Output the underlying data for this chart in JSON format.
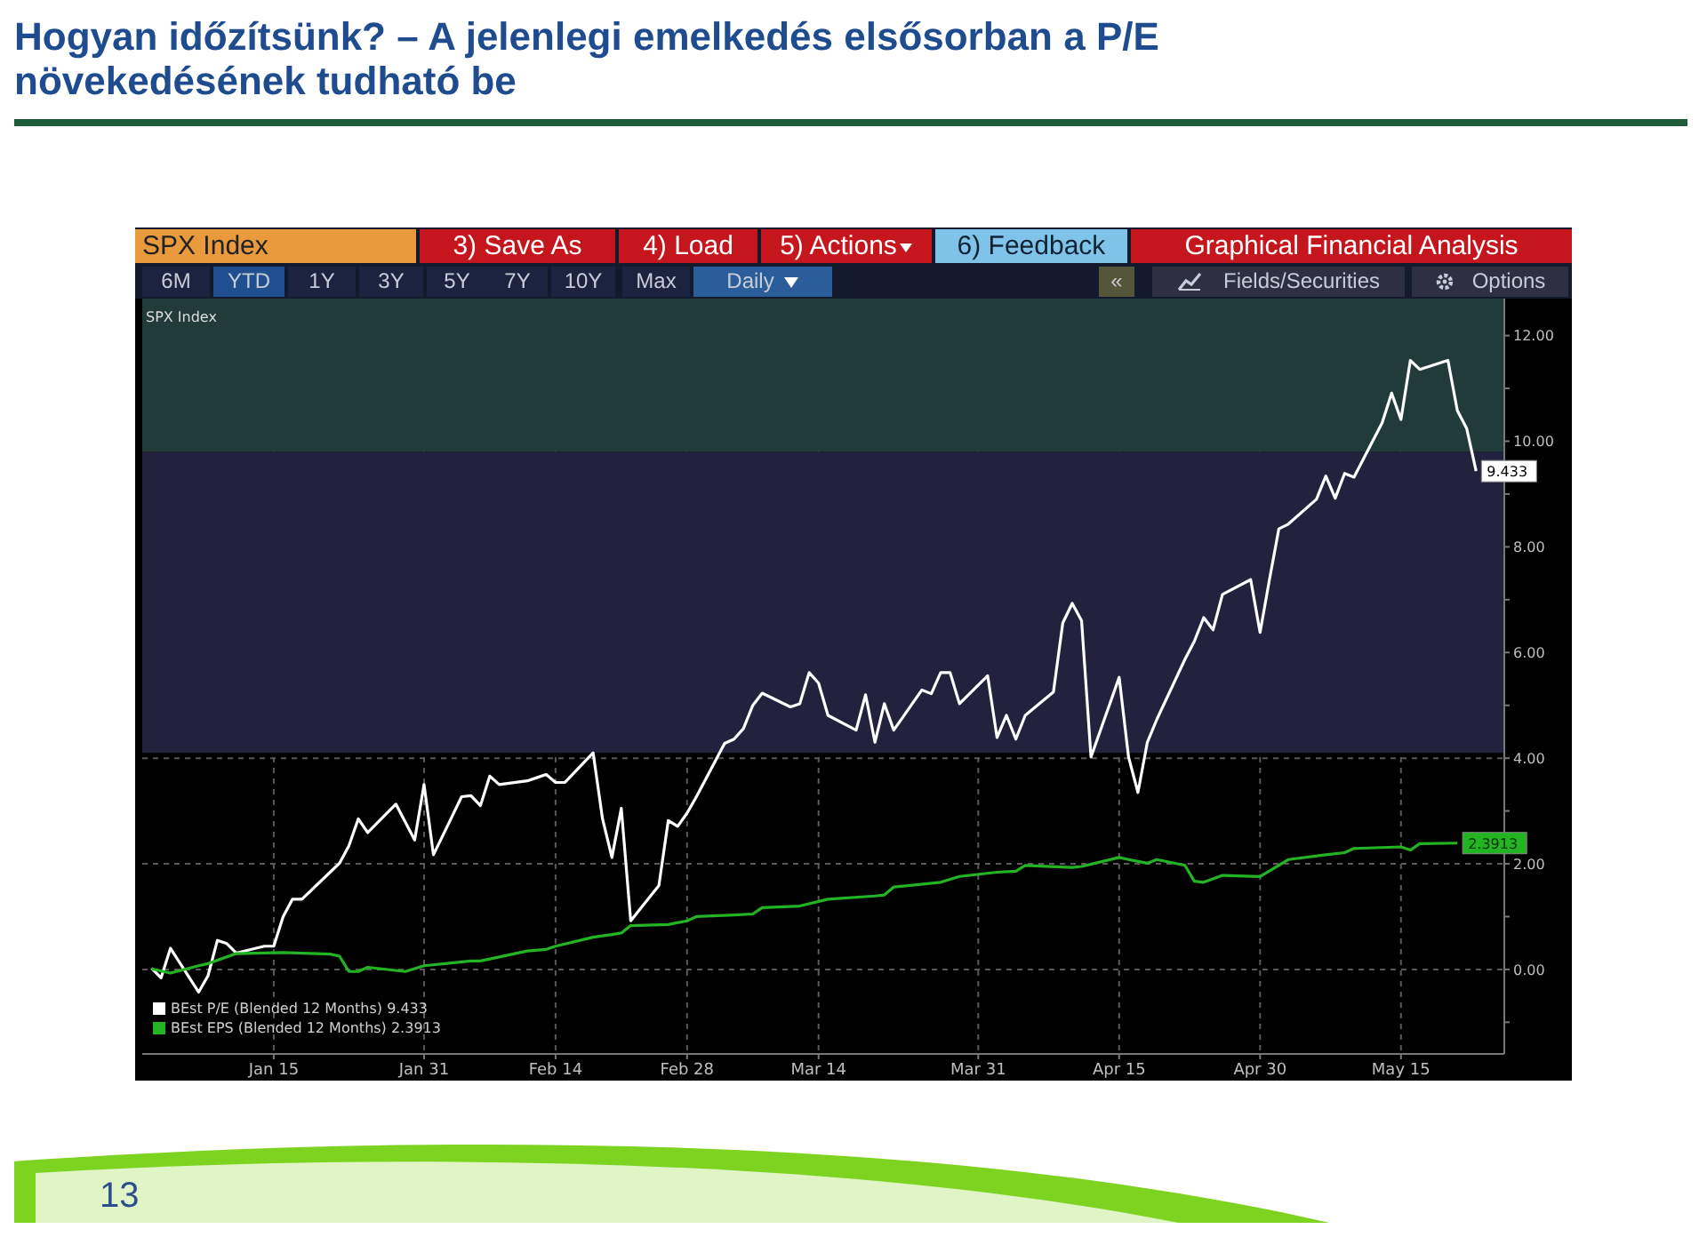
{
  "chart_data": {
    "type": "line",
    "title": "Hogyan időzítsünk? – A jelenlegi emelkedés elsősorban a P/E növekedésének tudható be",
    "subtitle": "SPX Index",
    "annotations": [
      "SPX Index",
      "3) Save As",
      "4) Load",
      "5) Actions",
      "6) Feedback",
      "Graphical Financial Analysis",
      "6M",
      "YTD",
      "1Y",
      "3Y",
      "5Y",
      "7Y",
      "10Y",
      "Max",
      "Daily",
      "«",
      "Fields/Securities",
      "Options",
      "13"
    ],
    "x": [
      "--01-02",
      "--01-03",
      "--01-04",
      "--01-07",
      "--01-08",
      "--01-09",
      "--01-10",
      "--01-11",
      "--01-14",
      "--01-15",
      "--01-16",
      "--01-17",
      "--01-18",
      "--01-21",
      "--01-22",
      "--01-23",
      "--01-24",
      "--01-25",
      "--01-28",
      "--01-29",
      "--01-30",
      "--01-31",
      "--02-01",
      "--02-04",
      "--02-05",
      "--02-06",
      "--02-07",
      "--02-08",
      "--02-11",
      "--02-12",
      "--02-13",
      "--02-14",
      "--02-15",
      "--02-18",
      "--02-19",
      "--02-20",
      "--02-21",
      "--02-22",
      "--02-25",
      "--02-26",
      "--02-27",
      "--02-28",
      "--03-01",
      "--03-04",
      "--03-05",
      "--03-06",
      "--03-07",
      "--03-08",
      "--03-11",
      "--03-12",
      "--03-13",
      "--03-14",
      "--03-15",
      "--03-18",
      "--03-19",
      "--03-20",
      "--03-21",
      "--03-22",
      "--03-25",
      "--03-26",
      "--03-27",
      "--03-28",
      "--03-29",
      "--04-01",
      "--04-02",
      "--04-03",
      "--04-04",
      "--04-05",
      "--04-08",
      "--04-09",
      "--04-10",
      "--04-11",
      "--04-12",
      "--04-15",
      "--04-16",
      "--04-17",
      "--04-18",
      "--04-19",
      "--04-22",
      "--04-23",
      "--04-24",
      "--04-25",
      "--04-26",
      "--04-29",
      "--04-30",
      "--05-01",
      "--05-02",
      "--05-03",
      "--05-06",
      "--05-07",
      "--05-08",
      "--05-09",
      "--05-10",
      "--05-13",
      "--05-14",
      "--05-15",
      "--05-16",
      "--05-17",
      "--05-20",
      "--05-21",
      "--05-22",
      "--05-23"
    ],
    "series": [
      {
        "name": "BEst P/E (Blended 12 Months) 9.433",
        "color": "#ffffff",
        "values": [
          0.02,
          -0.16,
          0.4,
          -0.43,
          -0.12,
          0.55,
          0.49,
          0.31,
          0.44,
          0.44,
          1.0,
          1.33,
          1.33,
          1.84,
          2.01,
          2.34,
          2.85,
          2.59,
          3.13,
          2.79,
          2.45,
          3.5,
          2.17,
          3.27,
          3.29,
          3.1,
          3.66,
          3.5,
          3.57,
          3.63,
          3.69,
          3.54,
          3.54,
          4.1,
          2.85,
          2.12,
          3.05,
          0.92,
          1.59,
          2.82,
          2.71,
          2.96,
          3.27,
          4.28,
          4.36,
          4.56,
          5.0,
          5.23,
          4.97,
          5.03,
          5.62,
          5.42,
          4.81,
          4.53,
          5.2,
          4.3,
          5.03,
          4.53,
          5.29,
          5.22,
          5.62,
          5.62,
          5.03,
          5.56,
          4.39,
          4.81,
          4.36,
          4.81,
          5.25,
          6.56,
          6.93,
          6.6,
          4.02,
          5.53,
          4.02,
          3.35,
          4.3,
          4.73,
          5.87,
          6.21,
          6.66,
          6.43,
          7.1,
          7.38,
          6.38,
          7.38,
          8.34,
          8.43,
          8.9,
          9.34,
          8.92,
          9.39,
          9.32,
          10.35,
          10.91,
          10.41,
          11.53,
          11.36,
          11.53,
          10.58,
          10.24,
          9.433
        ],
        "value_labels": [
          null,
          null,
          null,
          null,
          null,
          null,
          null,
          null,
          null,
          null,
          null,
          null,
          null,
          null,
          null,
          null,
          null,
          null,
          null,
          null,
          null,
          null,
          null,
          null,
          null,
          null,
          null,
          null,
          null,
          null,
          null,
          null,
          null,
          null,
          null,
          null,
          null,
          null,
          null,
          null,
          null,
          null,
          null,
          null,
          null,
          null,
          null,
          null,
          null,
          null,
          null,
          null,
          null,
          null,
          null,
          null,
          null,
          null,
          null,
          null,
          null,
          null,
          null,
          null,
          null,
          null,
          null,
          null,
          null,
          null,
          null,
          null,
          null,
          null,
          null,
          null,
          null,
          null,
          null,
          null,
          null,
          null,
          null,
          null,
          null,
          null,
          null,
          null,
          null,
          null,
          null,
          null,
          null,
          null,
          null,
          null,
          null,
          null,
          null,
          null,
          null,
          "9.433"
        ]
      },
      {
        "name": "BEst EPS (Blended 12 Months) 2.3913",
        "color": "#22b422",
        "x": [
          "--01-02",
          "--01-04",
          "--01-07",
          "--01-08",
          "--01-11",
          "--01-16",
          "--01-21",
          "--01-22",
          "--01-23",
          "--01-24",
          "--01-25",
          "--01-29",
          "--01-31",
          "--02-05",
          "--02-06",
          "--02-11",
          "--02-13",
          "--02-14",
          "--02-18",
          "--02-20",
          "--02-21",
          "--02-22",
          "--02-26",
          "--02-28",
          "--03-01",
          "--03-05",
          "--03-07",
          "--03-08",
          "--03-12",
          "--03-15",
          "--03-20",
          "--03-21",
          "--03-22",
          "--03-27",
          "--03-29",
          "--04-02",
          "--04-04",
          "--04-05",
          "--04-10",
          "--04-11",
          "--04-15",
          "--04-16",
          "--04-18",
          "--04-19",
          "--04-22",
          "--04-23",
          "--04-24",
          "--04-26",
          "--04-30",
          "--05-03",
          "--05-07",
          "--05-09",
          "--05-10",
          "--05-15",
          "--05-16",
          "--05-17",
          "--05-21"
        ],
        "values": [
          0.01,
          -0.07,
          0.07,
          0.11,
          0.3,
          0.32,
          0.29,
          0.25,
          -0.04,
          -0.04,
          0.04,
          -0.04,
          0.07,
          0.16,
          0.16,
          0.35,
          0.38,
          0.44,
          0.61,
          0.66,
          0.69,
          0.83,
          0.85,
          0.92,
          1.0,
          1.03,
          1.05,
          1.17,
          1.2,
          1.33,
          1.39,
          1.41,
          1.56,
          1.65,
          1.76,
          1.84,
          1.86,
          1.97,
          1.93,
          1.95,
          2.12,
          2.08,
          2.01,
          2.08,
          1.97,
          1.67,
          1.65,
          1.78,
          1.76,
          2.08,
          2.17,
          2.21,
          2.29,
          2.32,
          2.26,
          2.38,
          2.3913
        ],
        "value_labels": [
          null,
          null,
          null,
          null,
          null,
          null,
          null,
          null,
          null,
          null,
          null,
          null,
          null,
          null,
          null,
          null,
          null,
          null,
          null,
          null,
          null,
          null,
          null,
          null,
          null,
          null,
          null,
          null,
          null,
          null,
          null,
          null,
          null,
          null,
          null,
          null,
          null,
          null,
          null,
          null,
          null,
          null,
          null,
          null,
          null,
          null,
          null,
          null,
          null,
          null,
          null,
          null,
          null,
          null,
          null,
          null,
          "2.3913"
        ]
      }
    ],
    "xlim": [
      "--01-01",
      "--05-26"
    ],
    "xticks": [
      {
        "value": "--01-15",
        "label": "Jan 15"
      },
      {
        "value": "--01-31",
        "label": "Jan 31"
      },
      {
        "value": "--02-14",
        "label": "Feb 14"
      },
      {
        "value": "--02-28",
        "label": "Feb 28"
      },
      {
        "value": "--03-14",
        "label": "Mar 14"
      },
      {
        "value": "--03-31",
        "label": "Mar 31"
      },
      {
        "value": "--04-15",
        "label": "Apr 15"
      },
      {
        "value": "--04-30",
        "label": "Apr 30"
      },
      {
        "value": "--05-15",
        "label": "May 15"
      }
    ],
    "ylim": [
      -1.6,
      12.7
    ],
    "yticks": [
      {
        "value": -1,
        "label": null
      },
      {
        "value": 0,
        "label": "0.00"
      },
      {
        "value": 1,
        "label": null
      },
      {
        "value": 2,
        "label": "2.00"
      },
      {
        "value": 3,
        "label": null
      },
      {
        "value": 4,
        "label": "4.00"
      },
      {
        "value": 5,
        "label": null
      },
      {
        "value": 6,
        "label": "6.00"
      },
      {
        "value": 7,
        "label": null
      },
      {
        "value": 8,
        "label": "8.00"
      },
      {
        "value": 9,
        "label": null
      },
      {
        "value": 10,
        "label": "10.00"
      },
      {
        "value": 11,
        "label": null
      },
      {
        "value": 12,
        "label": "12.00"
      }
    ],
    "bands": [
      {
        "axis": "y",
        "from": 4.1,
        "to": 9.8,
        "color": "#22223f"
      },
      {
        "axis": "y",
        "from": 9.8,
        "to": 12.7,
        "color": "#213b3a"
      }
    ],
    "grid": true,
    "legend": "bottom left"
  }
}
